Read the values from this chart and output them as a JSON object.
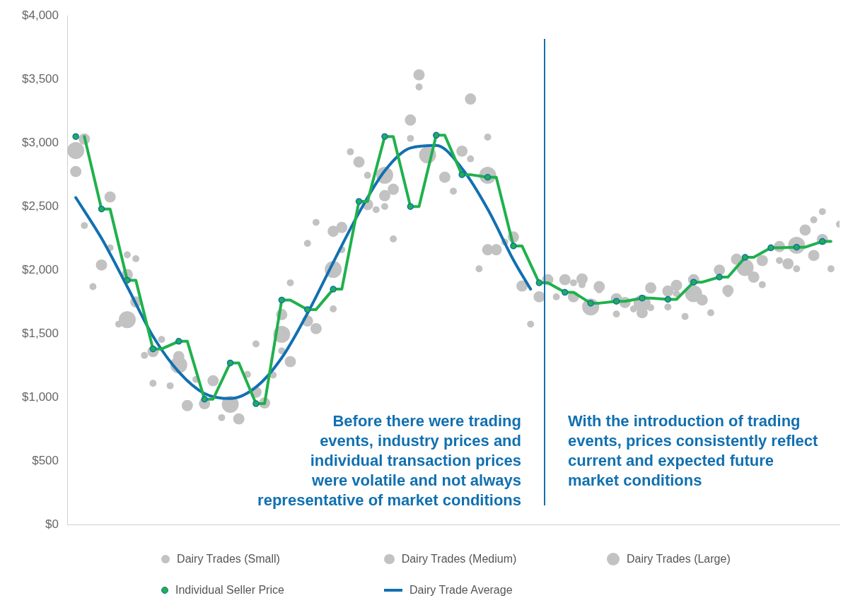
{
  "chart_data": {
    "type": "bubble",
    "categories": [
      null,
      null,
      null,
      null,
      null,
      null,
      null,
      null,
      null,
      null,
      null,
      null,
      null,
      null,
      null,
      null,
      null,
      null,
      null,
      null,
      null,
      null,
      null,
      null,
      null,
      null,
      null,
      null,
      null,
      null,
      null,
      null,
      null,
      null,
      null,
      null,
      null,
      null,
      null,
      null,
      null,
      null,
      null,
      null,
      null,
      null,
      null,
      null,
      null,
      null,
      null,
      null,
      null,
      null,
      null,
      null,
      null,
      null,
      null,
      null,
      null,
      null,
      null,
      null,
      null,
      null,
      null,
      null,
      null,
      null,
      null,
      null,
      null,
      null,
      null,
      null,
      null,
      null,
      null,
      null,
      null,
      null,
      null,
      null,
      null,
      null,
      null,
      null,
      null,
      null,
      null
    ],
    "ylim": [
      0,
      4000
    ],
    "yticks": [
      {
        "value": 0,
        "label": "$0"
      },
      {
        "value": 500,
        "label": "$500"
      },
      {
        "value": 1000,
        "label": "$1,000"
      },
      {
        "value": 1500,
        "label": "$1,500"
      },
      {
        "value": 2000,
        "label": "$2,000"
      },
      {
        "value": 2500,
        "label": "$2,500"
      },
      {
        "value": 3000,
        "label": "$3,000"
      },
      {
        "value": 3500,
        "label": "$3,500"
      },
      {
        "value": 4000,
        "label": "$4,000"
      }
    ],
    "tick_labels": "y",
    "legend": "bottom",
    "series": [
      {
        "name": "Dairy Trades (Small)",
        "color": "#c2c2c2",
        "values": [
          null,
          null,
          2350,
          1870,
          null,
          2175,
          1575,
          2120,
          2090,
          1330,
          1110,
          1455,
          1090,
          null,
          null,
          1140,
          null,
          null,
          840,
          null,
          null,
          1180,
          1420,
          null,
          1175,
          1365,
          1900,
          null,
          2210,
          2375,
          null,
          1695,
          2160,
          2930,
          null,
          2745,
          2475,
          2500,
          2245,
          null,
          3035,
          3440,
          null,
          null,
          null,
          2620,
          null,
          2875,
          2010,
          3045,
          null,
          2220,
          null,
          null,
          1575,
          null,
          null,
          1790,
          null,
          1900,
          1885,
          null,
          1845,
          null,
          1655,
          null,
          1695,
          null,
          1705,
          null,
          1710,
          1815,
          1635,
          null,
          null,
          1665,
          null,
          1815,
          null,
          null,
          null,
          1885,
          null,
          2075,
          null,
          2010,
          null,
          2395,
          2460,
          2010,
          2360
        ],
        "sizes": [
          null,
          null,
          0.17,
          0.17,
          null,
          0.17,
          0.17,
          0.17,
          0.17,
          0.17,
          0.17,
          0.17,
          0.17,
          null,
          null,
          0.17,
          null,
          null,
          0.17,
          null,
          null,
          0.17,
          0.17,
          null,
          0.17,
          0.17,
          0.17,
          null,
          0.17,
          0.17,
          null,
          0.17,
          0.17,
          0.17,
          null,
          0.17,
          0.17,
          0.17,
          0.17,
          null,
          0.17,
          0.17,
          null,
          null,
          null,
          0.17,
          null,
          0.17,
          0.17,
          0.17,
          null,
          0.17,
          null,
          null,
          0.17,
          null,
          null,
          0.17,
          null,
          0.17,
          0.17,
          null,
          0.17,
          null,
          0.17,
          null,
          0.17,
          null,
          0.17,
          null,
          0.17,
          0.17,
          0.17,
          null,
          null,
          0.17,
          null,
          0.17,
          null,
          null,
          null,
          0.17,
          null,
          0.17,
          null,
          0.17,
          null,
          0.17,
          0.17,
          0.17,
          0.17
        ]
      },
      {
        "name": "Dairy Trades (Medium)",
        "color": "#c2c2c2",
        "values": [
          null,
          2775,
          3030,
          null,
          2040,
          2575,
          null,
          1965,
          1750,
          null,
          1360,
          null,
          null,
          1320,
          935,
          null,
          950,
          1130,
          null,
          null,
          830,
          null,
          1040,
          955,
          null,
          1650,
          1280,
          null,
          1600,
          1540,
          null,
          2305,
          2335,
          null,
          2850,
          2515,
          null,
          2585,
          2635,
          null,
          3180,
          3535,
          null,
          null,
          2730,
          null,
          2935,
          3345,
          null,
          2160,
          2160,
          null,
          2260,
          1875,
          null,
          1790,
          1925,
          null,
          1925,
          1790,
          1930,
          null,
          1870,
          null,
          1775,
          1745,
          null,
          1665,
          1860,
          null,
          1835,
          1880,
          null,
          1925,
          1765,
          null,
          2000,
          1840,
          2085,
          null,
          1945,
          2075,
          null,
          2185,
          2050,
          null,
          2315,
          2115,
          2240,
          null,
          null
        ],
        "sizes": [
          null,
          0.44,
          0.44,
          null,
          0.44,
          0.44,
          null,
          0.44,
          0.44,
          null,
          0.44,
          null,
          null,
          0.44,
          0.44,
          null,
          0.44,
          0.44,
          null,
          null,
          0.44,
          null,
          0.44,
          0.44,
          null,
          0.44,
          0.44,
          null,
          0.44,
          0.44,
          null,
          0.44,
          0.44,
          null,
          0.44,
          0.44,
          null,
          0.44,
          0.44,
          null,
          0.44,
          0.44,
          null,
          null,
          0.44,
          null,
          0.44,
          0.44,
          null,
          0.44,
          0.44,
          null,
          0.44,
          0.44,
          null,
          0.44,
          0.44,
          null,
          0.44,
          0.44,
          0.44,
          null,
          0.44,
          null,
          0.44,
          0.44,
          null,
          0.44,
          0.44,
          null,
          0.44,
          0.44,
          null,
          0.44,
          0.44,
          null,
          0.44,
          0.44,
          0.44,
          null,
          0.44,
          0.44,
          null,
          0.44,
          0.44,
          null,
          0.44,
          0.44,
          0.44,
          null,
          null
        ]
      },
      {
        "name": "Dairy Trades (Large)",
        "color": "#c2c2c2",
        "values": [
          null,
          2940,
          null,
          null,
          null,
          null,
          null,
          1610,
          null,
          null,
          null,
          null,
          null,
          1255,
          null,
          null,
          null,
          null,
          null,
          945,
          null,
          null,
          null,
          null,
          null,
          1495,
          null,
          null,
          null,
          null,
          null,
          2005,
          null,
          null,
          null,
          null,
          null,
          2745,
          null,
          null,
          null,
          null,
          2905,
          null,
          null,
          null,
          null,
          null,
          null,
          2745,
          null,
          null,
          null,
          null,
          null,
          null,
          null,
          null,
          null,
          null,
          null,
          1710,
          null,
          null,
          null,
          null,
          null,
          1740,
          null,
          null,
          null,
          null,
          null,
          1815,
          null,
          null,
          null,
          null,
          null,
          2020,
          null,
          null,
          null,
          null,
          null,
          2195,
          null,
          null,
          null,
          null,
          null
        ],
        "sizes": [
          null,
          1,
          null,
          null,
          null,
          null,
          null,
          1,
          null,
          null,
          null,
          null,
          null,
          1,
          null,
          null,
          null,
          null,
          null,
          1,
          null,
          null,
          null,
          null,
          null,
          1,
          null,
          null,
          null,
          null,
          null,
          1,
          null,
          null,
          null,
          null,
          null,
          1,
          null,
          null,
          null,
          null,
          1,
          null,
          null,
          null,
          null,
          null,
          null,
          1,
          null,
          null,
          null,
          null,
          null,
          null,
          null,
          null,
          null,
          null,
          null,
          1,
          null,
          null,
          null,
          null,
          null,
          1,
          null,
          null,
          null,
          null,
          null,
          1,
          null,
          null,
          null,
          null,
          null,
          1,
          null,
          null,
          null,
          null,
          null,
          1,
          null,
          null,
          null,
          null,
          null
        ]
      },
      {
        "name": "Individual Seller Price",
        "type": "scatter",
        "color": "#1fb14c",
        "marker": "circle",
        "values": [
          null,
          3050,
          null,
          null,
          2480,
          null,
          null,
          1920,
          null,
          null,
          1380,
          null,
          null,
          1440,
          null,
          null,
          985,
          null,
          null,
          1270,
          null,
          null,
          950,
          null,
          null,
          1765,
          null,
          null,
          1690,
          null,
          null,
          1850,
          null,
          null,
          2540,
          null,
          null,
          3050,
          null,
          null,
          2500,
          null,
          null,
          3060,
          null,
          null,
          2750,
          null,
          null,
          2730,
          null,
          null,
          2190,
          null,
          null,
          1900,
          null,
          null,
          1825,
          null,
          null,
          1740,
          null,
          null,
          1755,
          null,
          null,
          1780,
          null,
          null,
          1770,
          null,
          null,
          1905,
          null,
          null,
          1945,
          null,
          null,
          2100,
          null,
          null,
          2175,
          null,
          null,
          2180,
          null,
          null,
          2225,
          null,
          null
        ]
      },
      {
        "type": "line",
        "color": "#1fb14c",
        "marker": "none",
        "values": [
          null,
          null,
          3050,
          null,
          2480,
          2480,
          null,
          1920,
          1920,
          null,
          1380,
          1380,
          null,
          1440,
          1440,
          null,
          985,
          985,
          null,
          1270,
          1270,
          null,
          950,
          950,
          null,
          1765,
          1765,
          null,
          1690,
          1690,
          null,
          1850,
          1850,
          null,
          2540,
          2540,
          null,
          3050,
          3050,
          null,
          2500,
          2500,
          null,
          3060,
          3060,
          null,
          2750,
          2750,
          null,
          2730,
          2730,
          null,
          2190,
          2190,
          null,
          1900,
          1900,
          null,
          1825,
          1825,
          null,
          1740,
          1740,
          null,
          1755,
          1755,
          null,
          1780,
          1780,
          null,
          1770,
          1770,
          null,
          1905,
          1905,
          null,
          1945,
          1945,
          null,
          2100,
          2100,
          null,
          2175,
          2175,
          null,
          2180,
          2180,
          null,
          2225,
          2225,
          null
        ]
      },
      {
        "name": "Dairy Trade Average",
        "type": "line",
        "color": "#1170b0",
        "marker": "none",
        "values": [
          null,
          2570,
          null,
          null,
          2250,
          null,
          null,
          1870,
          null,
          null,
          1480,
          null,
          null,
          1200,
          null,
          null,
          1030,
          null,
          null,
          990,
          null,
          null,
          1080,
          null,
          null,
          1310,
          null,
          null,
          1660,
          null,
          null,
          2060,
          null,
          null,
          2450,
          null,
          null,
          2780,
          null,
          null,
          2960,
          null,
          null,
          2980,
          null,
          null,
          2800,
          null,
          null,
          2480,
          null,
          null,
          2080,
          null,
          1850,
          null,
          null,
          null,
          null,
          null,
          null,
          null,
          null,
          null,
          null,
          null,
          null,
          null,
          null,
          null,
          null,
          null,
          null,
          null,
          null,
          null,
          null,
          null,
          null,
          null,
          null,
          null,
          null,
          null,
          null,
          null,
          null,
          null,
          null,
          null,
          null
        ]
      }
    ],
    "annotations": [
      "Before there were trading\nevents, industry prices and\nindividual transaction prices\nwere volatile and not always\nrepresentative of market conditions",
      "With the introduction of trading\nevents, prices consistently reflect\ncurrent and expected future\nmarket conditions"
    ]
  }
}
